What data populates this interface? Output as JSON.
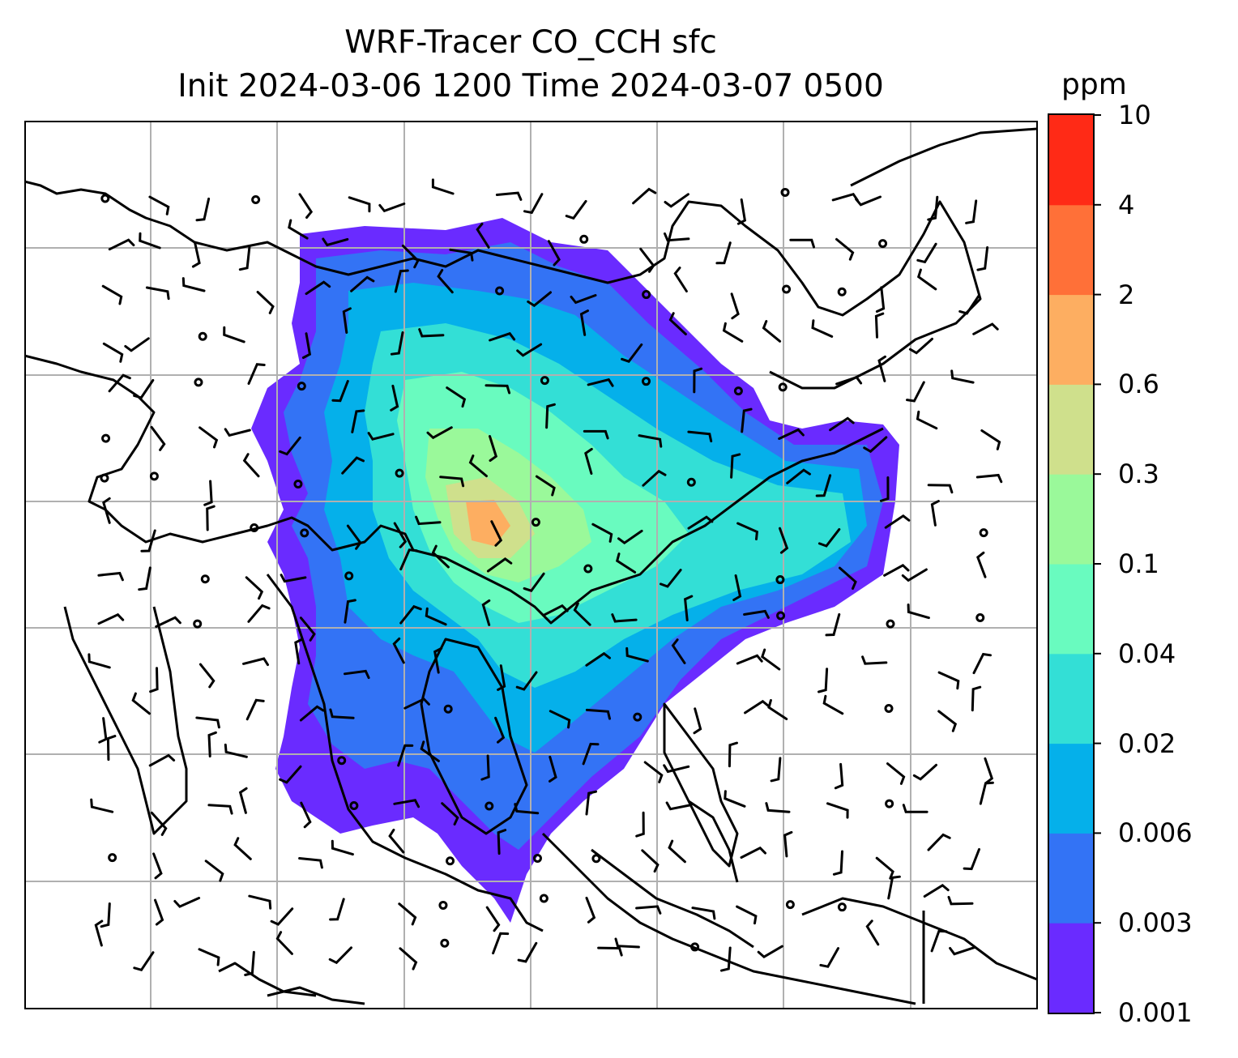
{
  "title": {
    "line1": "WRF-Tracer CO_CCH sfc",
    "line2": "Init 2024-03-06 1200 Time 2024-03-07 0500"
  },
  "colorbar": {
    "unit": "ppm",
    "levels": [
      "0.001",
      "0.003",
      "0.006",
      "0.02",
      "0.04",
      "0.1",
      "0.3",
      "0.6",
      "2",
      "4",
      "10"
    ],
    "colors": [
      "#6a2bff",
      "#3373f5",
      "#05b0ea",
      "#33dfd6",
      "#69fbbf",
      "#9af99a",
      "#cfe08c",
      "#fdae61",
      "#ff7038",
      "#ff2a16"
    ]
  },
  "map": {
    "region": "South, Southeast and East Asia",
    "field": "CO_CCH surface tracer concentration",
    "overlay": "wind barbs",
    "gridlines": true,
    "colors": {
      "coastline": "#000000",
      "grid": "#b0b0b0"
    }
  }
}
